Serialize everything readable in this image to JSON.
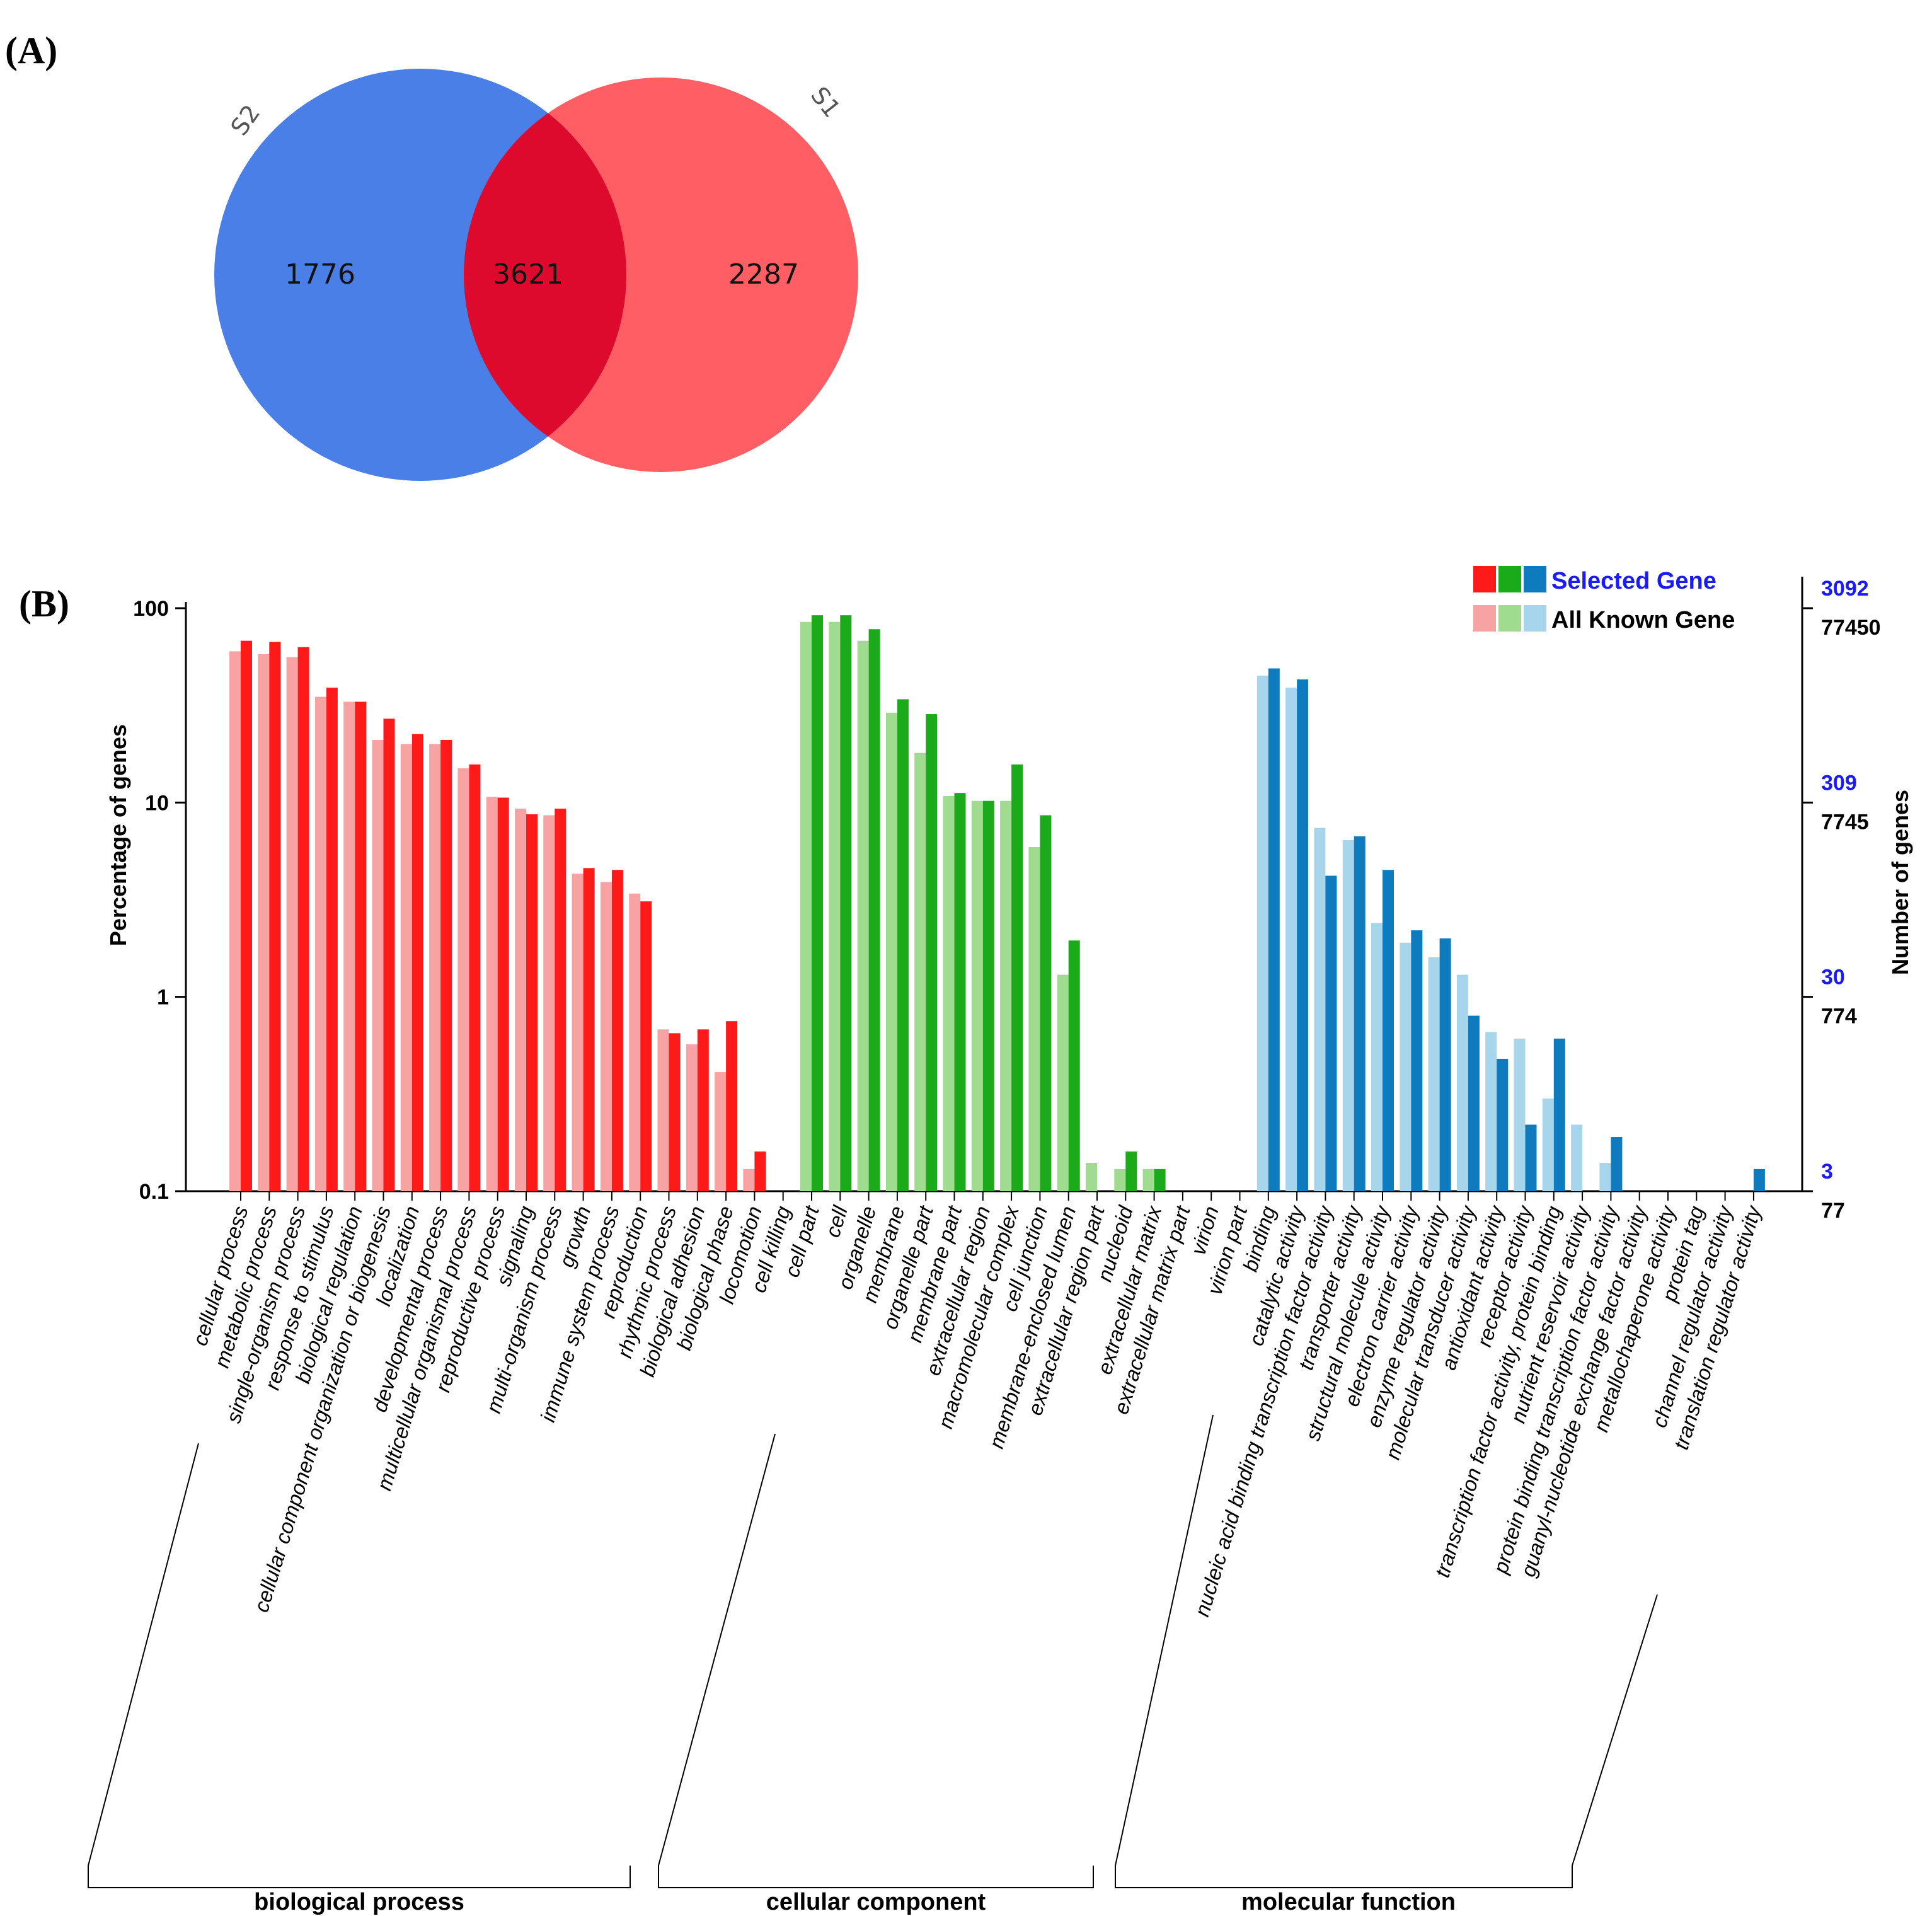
{
  "panel_a": {
    "label": "(A)",
    "sets": [
      {
        "name": "S2",
        "unique": "1776",
        "color": "#4a7fe8"
      },
      {
        "name": "S1",
        "unique": "2287",
        "color": "#ff5f64"
      }
    ],
    "overlap": "3621",
    "overlap_color": "#dd0a2e"
  },
  "panel_b": {
    "label": "(B)",
    "legend": {
      "selected": "Selected Gene",
      "all": "All Known Gene"
    }
  },
  "chart_data": {
    "type": "bar",
    "title": "",
    "ylabel": "Percentage of genes",
    "y2label": "Number of genes",
    "yscale": "log",
    "ylim": [
      0.1,
      100
    ],
    "yticks": [
      "100",
      "10",
      "1",
      "0.1"
    ],
    "y2ticks_selected": [
      "3092",
      "309",
      "30",
      "3"
    ],
    "y2ticks_all": [
      "77450",
      "7745",
      "774",
      "77"
    ],
    "series_names": [
      "All Known Gene",
      "Selected Gene"
    ],
    "groups": [
      {
        "name": "biological process",
        "color_selected": "#ff1a1a",
        "color_all": "#f7a3a3",
        "categories": [
          "cellular process",
          "metabolic process",
          "single-organism process",
          "response to stimulus",
          "biological regulation",
          "cellular component organization or biogenesis",
          "localization",
          "developmental process",
          "multicellular organismal process",
          "reproductive process",
          "signaling",
          "multi-organism process",
          "growth",
          "immune system process",
          "reproduction",
          "rhythmic process",
          "biological adhesion",
          "biological phase",
          "locomotion",
          "cell killing"
        ],
        "all": [
          60,
          58,
          56,
          35,
          33,
          21,
          20,
          20,
          15,
          10.7,
          9.3,
          8.6,
          4.3,
          3.9,
          3.4,
          0.68,
          0.57,
          0.41,
          0.13,
          null
        ],
        "selected": [
          68,
          67,
          63,
          39,
          33,
          27,
          22.5,
          21,
          15.7,
          10.6,
          8.7,
          9.3,
          4.6,
          4.5,
          3.1,
          0.65,
          0.68,
          0.75,
          0.16,
          null
        ]
      },
      {
        "name": "cellular component",
        "color_selected": "#1aaa1a",
        "color_all": "#9fdc8f",
        "categories": [
          "cell part",
          "cell",
          "organelle",
          "membrane",
          "organelle part",
          "membrane part",
          "extracellular region",
          "macromolecular complex",
          "cell junction",
          "membrane-enclosed lumen",
          "extracellular region part",
          "nucleoid",
          "extracellular matrix",
          "extracellular matrix part",
          "virion",
          "virion part"
        ],
        "all": [
          85,
          85,
          68,
          29,
          18,
          10.8,
          10.2,
          10.2,
          5.9,
          1.3,
          0.14,
          0.13,
          0.13,
          null,
          null,
          null
        ],
        "selected": [
          92,
          92,
          78,
          34,
          28.5,
          11.2,
          10.2,
          15.7,
          8.6,
          1.95,
          null,
          0.16,
          0.13,
          null,
          null,
          null
        ]
      },
      {
        "name": "molecular function",
        "color_selected": "#0f7bbf",
        "color_all": "#a7d6ec",
        "categories": [
          "binding",
          "catalytic activity",
          "nucleic acid binding transcription factor activity",
          "transporter activity",
          "structural molecule activity",
          "electron carrier activity",
          "enzyme regulator activity",
          "molecular transducer activity",
          "antioxidant activity",
          "receptor activity",
          "transcription factor activity, protein binding",
          "nutrient reservoir activity",
          "protein binding transcription factor activity",
          "guanyl-nucleotide exchange factor activity",
          "metallochaperone activity",
          "protein tag",
          "channel regulator activity",
          "translation regulator activity"
        ],
        "all": [
          45,
          39,
          7.4,
          6.4,
          2.4,
          1.9,
          1.6,
          1.3,
          0.66,
          0.61,
          0.3,
          0.22,
          0.14,
          null,
          null,
          null,
          null,
          null
        ],
        "selected": [
          49,
          43,
          4.2,
          6.7,
          4.5,
          2.2,
          2.0,
          0.8,
          0.48,
          0.22,
          0.61,
          null,
          0.19,
          null,
          null,
          null,
          null,
          0.13
        ]
      }
    ]
  }
}
